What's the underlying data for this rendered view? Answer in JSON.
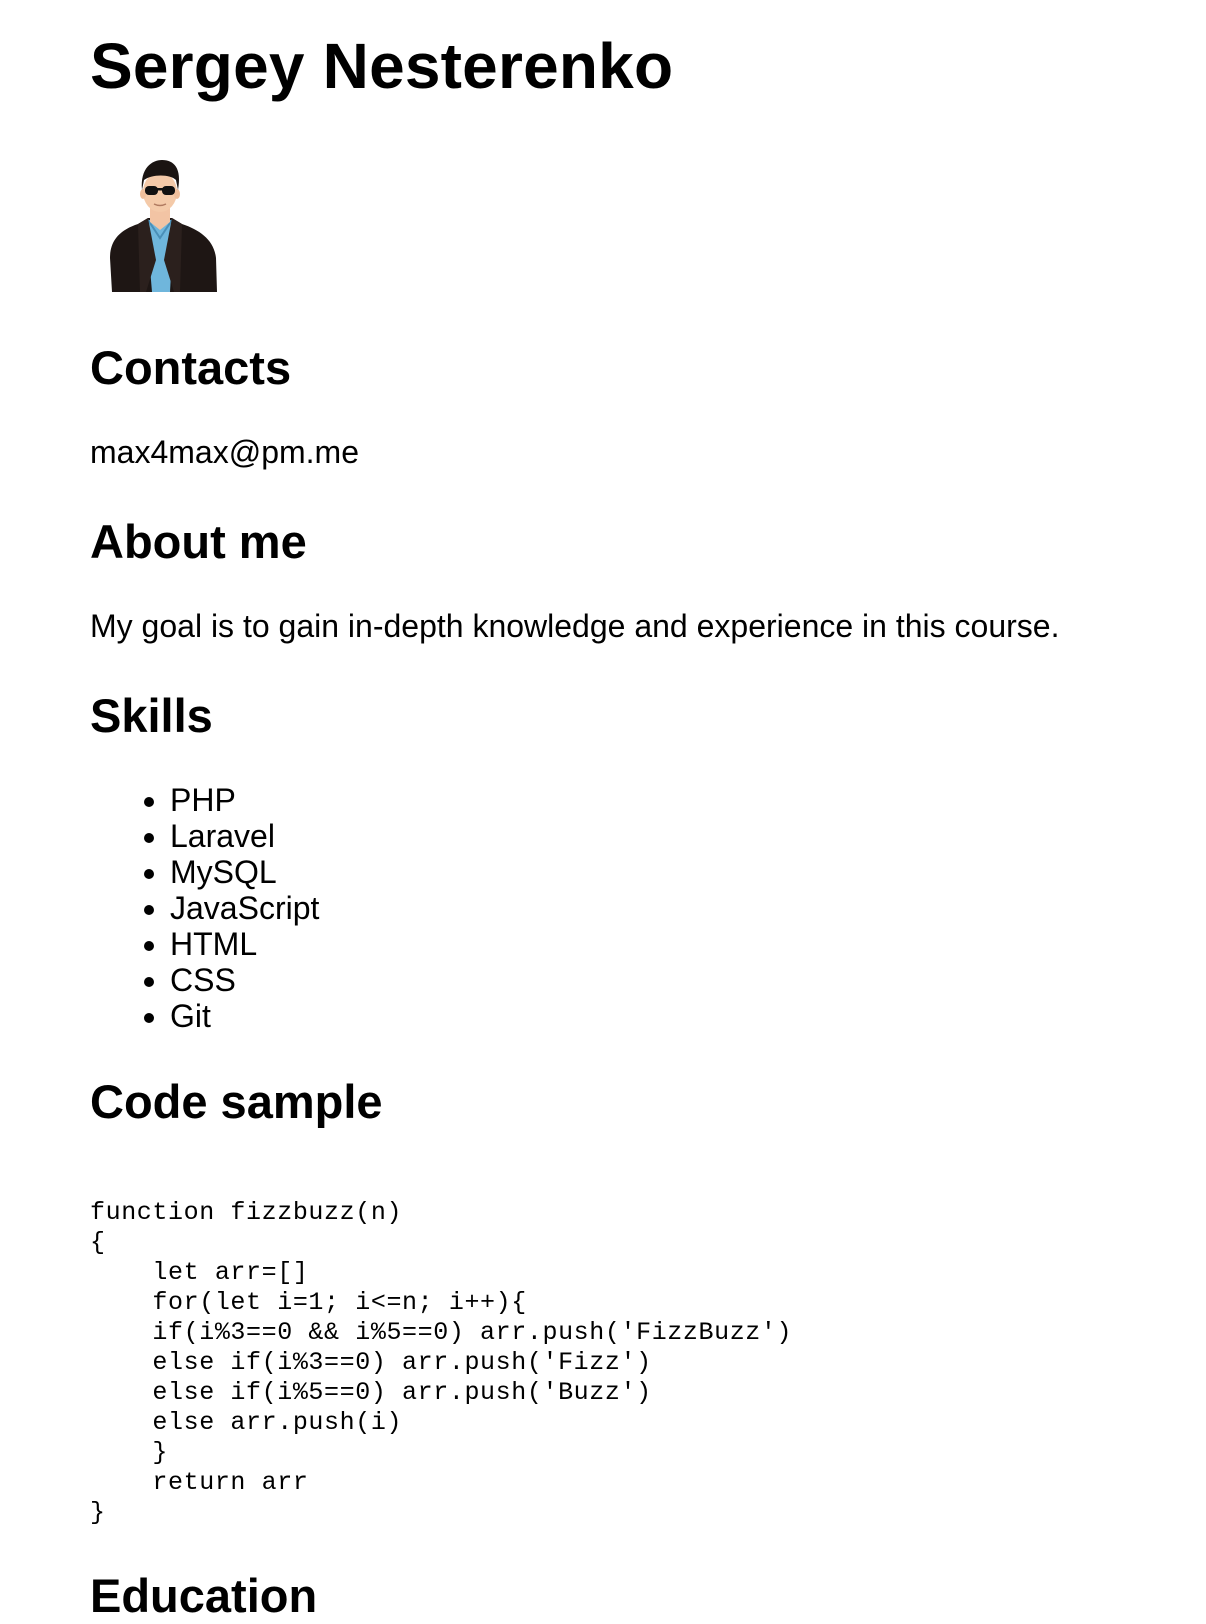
{
  "name": "Sergey Nesterenko",
  "avatar": {
    "icon": "person-avatar-icon"
  },
  "contacts": {
    "heading": "Contacts",
    "email": "max4max@pm.me"
  },
  "about": {
    "heading": "About me",
    "text": "My goal is to gain in-depth knowledge and experience in this course."
  },
  "skills": {
    "heading": "Skills",
    "items": [
      "PHP",
      "Laravel",
      "MySQL",
      "JavaScript",
      "HTML",
      "CSS",
      "Git"
    ]
  },
  "code": {
    "heading": "Code sample",
    "lines": [
      "function fizzbuzz(n)",
      "{",
      "    let arr=[]",
      "    for(let i=1; i<=n; i++){",
      "    if(i%3==0 && i%5==0) arr.push('FizzBuzz')",
      "    else if(i%3==0) arr.push('Fizz')",
      "    else if(i%5==0) arr.push('Buzz')",
      "    else arr.push(i)",
      "    }",
      "    return arr",
      "}"
    ]
  },
  "education": {
    "heading": "Education"
  }
}
